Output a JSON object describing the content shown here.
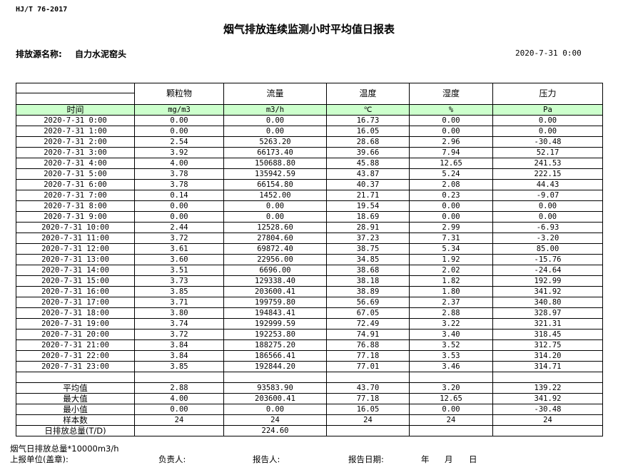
{
  "standard": "HJ/T  76-2017",
  "title": "烟气排放连续监测小时平均值日报表",
  "source_label": "排放源名称:",
  "source_name": "自力水泥窑头",
  "report_datetime": "2020-7-31 0:00",
  "table": {
    "headers": [
      "颗粒物",
      "流量",
      "温度",
      "湿度",
      "压力"
    ],
    "time_label": "时间",
    "units": [
      "mg/m3",
      "m3/h",
      "℃",
      "%",
      "Pa"
    ],
    "rows": [
      [
        "2020-7-31 0:00",
        "0.00",
        "0.00",
        "16.73",
        "0.00",
        "0.00"
      ],
      [
        "2020-7-31 1:00",
        "0.00",
        "0.00",
        "16.05",
        "0.00",
        "0.00"
      ],
      [
        "2020-7-31 2:00",
        "2.54",
        "5263.20",
        "28.68",
        "2.96",
        "-30.48"
      ],
      [
        "2020-7-31 3:00",
        "3.92",
        "66173.40",
        "39.66",
        "7.94",
        "52.17"
      ],
      [
        "2020-7-31 4:00",
        "4.00",
        "150688.80",
        "45.88",
        "12.65",
        "241.53"
      ],
      [
        "2020-7-31 5:00",
        "3.78",
        "135942.59",
        "43.87",
        "5.24",
        "222.15"
      ],
      [
        "2020-7-31 6:00",
        "3.78",
        "66154.80",
        "40.37",
        "2.08",
        "44.43"
      ],
      [
        "2020-7-31 7:00",
        "0.14",
        "1452.00",
        "21.71",
        "0.23",
        "-9.07"
      ],
      [
        "2020-7-31 8:00",
        "0.00",
        "0.00",
        "19.54",
        "0.00",
        "0.00"
      ],
      [
        "2020-7-31 9:00",
        "0.00",
        "0.00",
        "18.69",
        "0.00",
        "0.00"
      ],
      [
        "2020-7-31 10:00",
        "2.44",
        "12528.60",
        "28.91",
        "2.99",
        "-6.93"
      ],
      [
        "2020-7-31 11:00",
        "3.72",
        "27804.60",
        "37.23",
        "7.31",
        "-3.20"
      ],
      [
        "2020-7-31 12:00",
        "3.61",
        "69872.40",
        "38.75",
        "5.34",
        "85.00"
      ],
      [
        "2020-7-31 13:00",
        "3.60",
        "22956.00",
        "34.85",
        "1.92",
        "-15.76"
      ],
      [
        "2020-7-31 14:00",
        "3.51",
        "6696.00",
        "38.68",
        "2.02",
        "-24.64"
      ],
      [
        "2020-7-31 15:00",
        "3.73",
        "129338.40",
        "38.18",
        "1.82",
        "192.99"
      ],
      [
        "2020-7-31 16:00",
        "3.85",
        "203600.41",
        "38.89",
        "1.80",
        "341.92"
      ],
      [
        "2020-7-31 17:00",
        "3.71",
        "199759.80",
        "56.69",
        "2.37",
        "340.80"
      ],
      [
        "2020-7-31 18:00",
        "3.80",
        "194843.41",
        "67.05",
        "2.88",
        "328.97"
      ],
      [
        "2020-7-31 19:00",
        "3.74",
        "192999.59",
        "72.49",
        "3.22",
        "321.31"
      ],
      [
        "2020-7-31 20:00",
        "3.72",
        "192253.80",
        "74.91",
        "3.40",
        "318.45"
      ],
      [
        "2020-7-31 21:00",
        "3.84",
        "188275.20",
        "76.88",
        "3.52",
        "312.75"
      ],
      [
        "2020-7-31 22:00",
        "3.84",
        "186566.41",
        "77.18",
        "3.53",
        "314.20"
      ],
      [
        "2020-7-31 23:00",
        "3.85",
        "192844.20",
        "77.01",
        "3.46",
        "314.71"
      ]
    ],
    "stats": [
      [
        "平均值",
        "2.88",
        "93583.90",
        "43.70",
        "3.20",
        "139.22"
      ],
      [
        "最大值",
        "4.00",
        "203600.41",
        "77.18",
        "12.65",
        "341.92"
      ],
      [
        "最小值",
        "0.00",
        "0.00",
        "16.05",
        "0.00",
        "-30.48"
      ],
      [
        "样本数",
        "24",
        "24",
        "24",
        "24",
        "24"
      ],
      [
        "日排放总量(T/D)",
        "",
        "224.60",
        "",
        "",
        ""
      ]
    ]
  },
  "footer": {
    "note": "烟气日排放总量*10000m3/h",
    "unit_label": "上报单位(盖章):",
    "responsible_label": "负责人:",
    "reporter_label": "报告人:",
    "report_date_label": "报告日期:",
    "year": "年",
    "month": "月",
    "day": "日"
  },
  "colors": {
    "unit_row_bg": "#ccffcc"
  }
}
